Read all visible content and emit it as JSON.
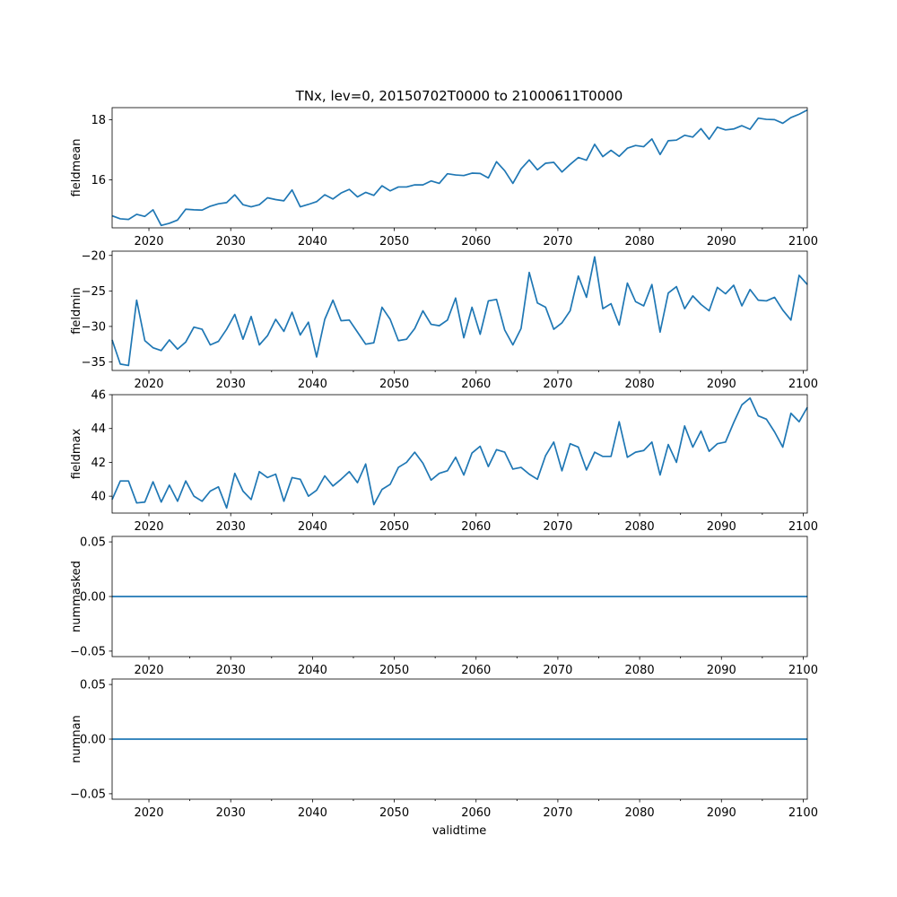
{
  "title": "TNx, lev=0, 20150702T0000 to 21000611T0000",
  "xlabel": "validtime",
  "series_color": "#1f77b4",
  "chart_data": [
    {
      "type": "line",
      "ylabel": "fieldmean",
      "xlim": [
        2015.5,
        2100.5
      ],
      "ylim": [
        14.4,
        18.4
      ],
      "yticks": [
        16,
        18
      ],
      "ytick_labels": [
        "16",
        "18"
      ],
      "xticks": [
        2020,
        2030,
        2040,
        2050,
        2060,
        2070,
        2080,
        2090,
        2100
      ],
      "xtick_labels": [
        "2020",
        "2030",
        "2040",
        "2050",
        "2060",
        "2070",
        "2080",
        "2090",
        "2100"
      ],
      "x": [
        2015.5,
        2016.5,
        2017.5,
        2018.5,
        2019.5,
        2020.5,
        2021.5,
        2022.5,
        2023.5,
        2024.5,
        2025.5,
        2026.5,
        2027.5,
        2028.5,
        2029.5,
        2030.5,
        2031.5,
        2032.5,
        2033.5,
        2034.5,
        2035.5,
        2036.5,
        2037.5,
        2038.5,
        2039.5,
        2040.5,
        2041.5,
        2042.5,
        2043.5,
        2044.5,
        2045.5,
        2046.5,
        2047.5,
        2048.5,
        2049.5,
        2050.5,
        2051.5,
        2052.5,
        2053.5,
        2054.5,
        2055.5,
        2056.5,
        2057.5,
        2058.5,
        2059.5,
        2060.5,
        2061.5,
        2062.5,
        2063.5,
        2064.5,
        2065.5,
        2066.5,
        2067.5,
        2068.5,
        2069.5,
        2070.5,
        2071.5,
        2072.5,
        2073.5,
        2074.5,
        2075.5,
        2076.5,
        2077.5,
        2078.5,
        2079.5,
        2080.5,
        2081.5,
        2082.5,
        2083.5,
        2084.5,
        2085.5,
        2086.5,
        2087.5,
        2088.5,
        2089.5,
        2090.5,
        2091.5,
        2092.5,
        2093.5,
        2094.5,
        2095.5,
        2096.5,
        2097.5,
        2098.5,
        2099.5,
        2100.5
      ],
      "values": [
        14.8,
        14.7,
        14.68,
        14.85,
        14.78,
        15.0,
        14.48,
        14.55,
        14.66,
        15.02,
        15.0,
        14.99,
        15.12,
        15.2,
        15.24,
        15.5,
        15.17,
        15.1,
        15.17,
        15.4,
        15.34,
        15.3,
        15.66,
        15.1,
        15.18,
        15.27,
        15.5,
        15.36,
        15.56,
        15.68,
        15.43,
        15.58,
        15.48,
        15.8,
        15.63,
        15.76,
        15.76,
        15.83,
        15.83,
        15.96,
        15.88,
        16.2,
        16.16,
        16.14,
        16.22,
        16.21,
        16.06,
        16.6,
        16.3,
        15.88,
        16.36,
        16.66,
        16.33,
        16.55,
        16.58,
        16.26,
        16.51,
        16.74,
        16.65,
        17.18,
        16.77,
        16.98,
        16.78,
        17.05,
        17.14,
        17.1,
        17.36,
        16.84,
        17.3,
        17.32,
        17.48,
        17.42,
        17.7,
        17.35,
        17.75,
        17.66,
        17.69,
        17.8,
        17.68,
        18.05,
        18.01,
        18.0,
        17.88,
        18.07,
        18.18,
        18.32
      ]
    },
    {
      "type": "line",
      "ylabel": "fieldmin",
      "xlim": [
        2015.5,
        2100.5
      ],
      "ylim": [
        -36.2,
        -19.4
      ],
      "yticks": [
        -35,
        -30,
        -25,
        -20
      ],
      "ytick_labels": [
        "−35",
        "−30",
        "−25",
        "−20"
      ],
      "xticks": [
        2020,
        2030,
        2040,
        2050,
        2060,
        2070,
        2080,
        2090,
        2100
      ],
      "xtick_labels": [
        "2020",
        "2030",
        "2040",
        "2050",
        "2060",
        "2070",
        "2080",
        "2090",
        "2100"
      ],
      "x": [
        2015.5,
        2016.5,
        2017.5,
        2018.5,
        2019.5,
        2020.5,
        2021.5,
        2022.5,
        2023.5,
        2024.5,
        2025.5,
        2026.5,
        2027.5,
        2028.5,
        2029.5,
        2030.5,
        2031.5,
        2032.5,
        2033.5,
        2034.5,
        2035.5,
        2036.5,
        2037.5,
        2038.5,
        2039.5,
        2040.5,
        2041.5,
        2042.5,
        2043.5,
        2044.5,
        2045.5,
        2046.5,
        2047.5,
        2048.5,
        2049.5,
        2050.5,
        2051.5,
        2052.5,
        2053.5,
        2054.5,
        2055.5,
        2056.5,
        2057.5,
        2058.5,
        2059.5,
        2060.5,
        2061.5,
        2062.5,
        2063.5,
        2064.5,
        2065.5,
        2066.5,
        2067.5,
        2068.5,
        2069.5,
        2070.5,
        2071.5,
        2072.5,
        2073.5,
        2074.5,
        2075.5,
        2076.5,
        2077.5,
        2078.5,
        2079.5,
        2080.5,
        2081.5,
        2082.5,
        2083.5,
        2084.5,
        2085.5,
        2086.5,
        2087.5,
        2088.5,
        2089.5,
        2090.5,
        2091.5,
        2092.5,
        2093.5,
        2094.5,
        2095.5,
        2096.5,
        2097.5,
        2098.5,
        2099.5,
        2100.5
      ],
      "values": [
        -31.9,
        -35.3,
        -35.5,
        -26.3,
        -32.0,
        -33.0,
        -33.4,
        -31.9,
        -33.2,
        -32.2,
        -30.1,
        -30.4,
        -32.6,
        -32.1,
        -30.4,
        -28.3,
        -31.8,
        -28.6,
        -32.6,
        -31.3,
        -29.0,
        -30.7,
        -28.0,
        -31.2,
        -29.4,
        -34.3,
        -29.0,
        -26.3,
        -29.2,
        -29.1,
        -30.8,
        -32.5,
        -32.3,
        -27.3,
        -29.0,
        -32.0,
        -31.8,
        -30.3,
        -27.8,
        -29.7,
        -29.9,
        -29.1,
        -26.0,
        -31.6,
        -27.3,
        -31.1,
        -26.4,
        -26.2,
        -30.5,
        -32.6,
        -30.3,
        -22.4,
        -26.7,
        -27.3,
        -30.4,
        -29.5,
        -27.8,
        -22.9,
        -25.9,
        -20.2,
        -27.5,
        -26.8,
        -29.8,
        -23.9,
        -26.5,
        -27.1,
        -24.1,
        -30.8,
        -25.3,
        -24.4,
        -27.5,
        -25.7,
        -26.9,
        -27.8,
        -24.5,
        -25.4,
        -24.2,
        -27.1,
        -24.8,
        -26.3,
        -26.4,
        -25.9,
        -27.7,
        -29.1,
        -22.8,
        -24.1
      ]
    },
    {
      "type": "line",
      "ylabel": "fieldmax",
      "xlim": [
        2015.5,
        2100.5
      ],
      "ylim": [
        39.0,
        46.0
      ],
      "yticks": [
        40,
        42,
        44,
        46
      ],
      "ytick_labels": [
        "40",
        "42",
        "44",
        "46"
      ],
      "xticks": [
        2020,
        2030,
        2040,
        2050,
        2060,
        2070,
        2080,
        2090,
        2100
      ],
      "xtick_labels": [
        "2020",
        "2030",
        "2040",
        "2050",
        "2060",
        "2070",
        "2080",
        "2090",
        "2100"
      ],
      "x": [
        2015.5,
        2016.5,
        2017.5,
        2018.5,
        2019.5,
        2020.5,
        2021.5,
        2022.5,
        2023.5,
        2024.5,
        2025.5,
        2026.5,
        2027.5,
        2028.5,
        2029.5,
        2030.5,
        2031.5,
        2032.5,
        2033.5,
        2034.5,
        2035.5,
        2036.5,
        2037.5,
        2038.5,
        2039.5,
        2040.5,
        2041.5,
        2042.5,
        2043.5,
        2044.5,
        2045.5,
        2046.5,
        2047.5,
        2048.5,
        2049.5,
        2050.5,
        2051.5,
        2052.5,
        2053.5,
        2054.5,
        2055.5,
        2056.5,
        2057.5,
        2058.5,
        2059.5,
        2060.5,
        2061.5,
        2062.5,
        2063.5,
        2064.5,
        2065.5,
        2066.5,
        2067.5,
        2068.5,
        2069.5,
        2070.5,
        2071.5,
        2072.5,
        2073.5,
        2074.5,
        2075.5,
        2076.5,
        2077.5,
        2078.5,
        2079.5,
        2080.5,
        2081.5,
        2082.5,
        2083.5,
        2084.5,
        2085.5,
        2086.5,
        2087.5,
        2088.5,
        2089.5,
        2090.5,
        2091.5,
        2092.5,
        2093.5,
        2094.5,
        2095.5,
        2096.5,
        2097.5,
        2098.5,
        2099.5,
        2100.5
      ],
      "values": [
        39.8,
        40.9,
        40.9,
        39.6,
        39.65,
        40.85,
        39.65,
        40.65,
        39.7,
        40.9,
        40.0,
        39.7,
        40.3,
        40.55,
        39.3,
        41.35,
        40.3,
        39.8,
        41.45,
        41.1,
        41.3,
        39.7,
        41.1,
        41.0,
        40.0,
        40.35,
        41.2,
        40.6,
        41.0,
        41.45,
        40.8,
        41.9,
        39.5,
        40.4,
        40.7,
        41.7,
        42.0,
        42.6,
        41.95,
        40.95,
        41.35,
        41.5,
        42.3,
        41.25,
        42.55,
        42.95,
        41.75,
        42.75,
        42.6,
        41.6,
        41.7,
        41.3,
        41.0,
        42.4,
        43.2,
        41.5,
        43.1,
        42.9,
        41.55,
        42.6,
        42.35,
        42.35,
        44.4,
        42.3,
        42.6,
        42.7,
        43.2,
        41.25,
        43.05,
        42.0,
        44.15,
        42.9,
        43.85,
        42.65,
        43.1,
        43.2,
        44.35,
        45.4,
        45.8,
        44.75,
        44.55,
        43.8,
        42.9,
        44.9,
        44.4,
        45.25
      ]
    },
    {
      "type": "line",
      "ylabel": "nummasked",
      "xlim": [
        2015.5,
        2100.5
      ],
      "ylim": [
        -0.055,
        0.055
      ],
      "yticks": [
        -0.05,
        0.0,
        0.05
      ],
      "ytick_labels": [
        "−0.05",
        "0.00",
        "0.05"
      ],
      "xticks": [
        2020,
        2030,
        2040,
        2050,
        2060,
        2070,
        2080,
        2090,
        2100
      ],
      "xtick_labels": [
        "2020",
        "2030",
        "2040",
        "2050",
        "2060",
        "2070",
        "2080",
        "2090",
        "2100"
      ],
      "x": [
        2015.5,
        2100.5
      ],
      "values": [
        0,
        0
      ]
    },
    {
      "type": "line",
      "ylabel": "numnan",
      "xlim": [
        2015.5,
        2100.5
      ],
      "ylim": [
        -0.055,
        0.055
      ],
      "yticks": [
        -0.05,
        0.0,
        0.05
      ],
      "ytick_labels": [
        "−0.05",
        "0.00",
        "0.05"
      ],
      "xticks": [
        2020,
        2030,
        2040,
        2050,
        2060,
        2070,
        2080,
        2090,
        2100
      ],
      "xtick_labels": [
        "2020",
        "2030",
        "2040",
        "2050",
        "2060",
        "2070",
        "2080",
        "2090",
        "2100"
      ],
      "x": [
        2015.5,
        2100.5
      ],
      "values": [
        0,
        0
      ]
    }
  ]
}
